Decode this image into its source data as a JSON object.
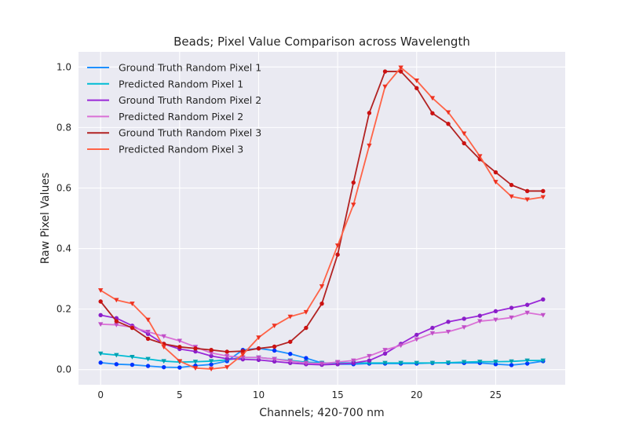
{
  "chart_data": {
    "type": "line",
    "title": "Beads; Pixel Value Comparison across Wavelength",
    "xlabel": "Channels; 420-700 nm",
    "ylabel": "Raw Pixel Values",
    "xlim": [
      -1.4,
      29.4
    ],
    "ylim": [
      -0.05,
      1.05
    ],
    "xticks": [
      0,
      5,
      10,
      15,
      20,
      25
    ],
    "yticks": [
      0.0,
      0.2,
      0.4,
      0.6,
      0.8,
      1.0
    ],
    "xtick_labels": [
      "0",
      "5",
      "10",
      "15",
      "20",
      "25"
    ],
    "ytick_labels": [
      "0.0",
      "0.2",
      "0.4",
      "0.6",
      "0.8",
      "1.0"
    ],
    "grid": true,
    "legend_position": "top-left",
    "x": [
      0,
      1,
      2,
      3,
      4,
      5,
      6,
      7,
      8,
      9,
      10,
      11,
      12,
      13,
      14,
      15,
      16,
      17,
      18,
      19,
      20,
      21,
      22,
      23,
      24,
      25,
      26,
      27,
      28
    ],
    "series": [
      {
        "name": "Ground Truth Random Pixel 1",
        "color": "#1e90ff",
        "marker_color": "#0033ff",
        "marker": "circle",
        "values": [
          0.023,
          0.018,
          0.016,
          0.012,
          0.008,
          0.007,
          0.013,
          0.017,
          0.028,
          0.065,
          0.07,
          0.063,
          0.052,
          0.038,
          0.022,
          0.018,
          0.018,
          0.02,
          0.02,
          0.02,
          0.02,
          0.022,
          0.022,
          0.022,
          0.022,
          0.018,
          0.015,
          0.02,
          0.028
        ]
      },
      {
        "name": "Predicted Random Pixel 1",
        "color": "#00bcd4",
        "marker_color": "#00a0b0",
        "marker": "triangle-down",
        "values": [
          0.053,
          0.048,
          0.042,
          0.035,
          0.028,
          0.025,
          0.026,
          0.028,
          0.032,
          0.04,
          0.04,
          0.035,
          0.03,
          0.025,
          0.022,
          0.022,
          0.022,
          0.022,
          0.022,
          0.022,
          0.022,
          0.022,
          0.023,
          0.025,
          0.026,
          0.026,
          0.027,
          0.03,
          0.03
        ]
      },
      {
        "name": "Ground Truth Random Pixel 2",
        "color": "#9a28d8",
        "marker_color": "#8a1ec8",
        "marker": "circle",
        "values": [
          0.18,
          0.17,
          0.145,
          0.118,
          0.085,
          0.068,
          0.06,
          0.045,
          0.036,
          0.034,
          0.032,
          0.027,
          0.022,
          0.018,
          0.016,
          0.018,
          0.022,
          0.03,
          0.053,
          0.085,
          0.115,
          0.138,
          0.158,
          0.168,
          0.178,
          0.193,
          0.204,
          0.214,
          0.232
        ]
      },
      {
        "name": "Predicted Random Pixel 2",
        "color": "#da70d6",
        "marker_color": "#c050c8",
        "marker": "triangle-down",
        "values": [
          0.15,
          0.148,
          0.14,
          0.125,
          0.11,
          0.095,
          0.075,
          0.055,
          0.045,
          0.04,
          0.04,
          0.035,
          0.028,
          0.022,
          0.02,
          0.025,
          0.03,
          0.045,
          0.065,
          0.08,
          0.1,
          0.12,
          0.125,
          0.14,
          0.16,
          0.165,
          0.172,
          0.188,
          0.18
        ]
      },
      {
        "name": "Ground Truth Random Pixel 3",
        "color": "#b22222",
        "marker_color": "#cc1111",
        "marker": "circle",
        "values": [
          0.225,
          0.16,
          0.138,
          0.102,
          0.085,
          0.075,
          0.07,
          0.065,
          0.059,
          0.061,
          0.07,
          0.076,
          0.092,
          0.138,
          0.218,
          0.38,
          0.618,
          0.848,
          0.985,
          0.985,
          0.93,
          0.847,
          0.812,
          0.748,
          0.695,
          0.652,
          0.61,
          0.59,
          0.59
        ]
      },
      {
        "name": "Predicted Random Pixel 3",
        "color": "#ff6347",
        "marker_color": "#ee3322",
        "marker": "triangle-down",
        "values": [
          0.262,
          0.23,
          0.218,
          0.165,
          0.075,
          0.028,
          0.005,
          0.002,
          0.008,
          0.05,
          0.106,
          0.145,
          0.175,
          0.19,
          0.275,
          0.41,
          0.545,
          0.74,
          0.935,
          0.998,
          0.955,
          0.897,
          0.85,
          0.78,
          0.705,
          0.62,
          0.572,
          0.562,
          0.57
        ]
      }
    ]
  }
}
